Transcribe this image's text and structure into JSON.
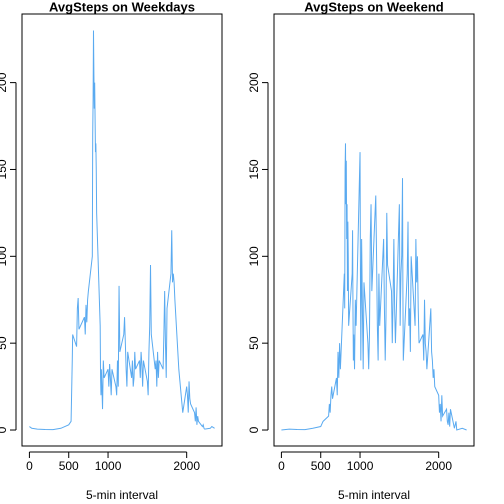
{
  "chart_data": [
    {
      "type": "line",
      "title": "AvgSteps on Weekdays",
      "xlabel": "5-min interval",
      "color": "#5aaaf0",
      "x": [
        0,
        30,
        100,
        200,
        300,
        400,
        500,
        530,
        545,
        550,
        600,
        610,
        620,
        630,
        700,
        710,
        720,
        730,
        740,
        750,
        800,
        805,
        810,
        815,
        820,
        825,
        830,
        835,
        840,
        845,
        850,
        855,
        900,
        905,
        910,
        915,
        920,
        930,
        940,
        950,
        1000,
        1010,
        1020,
        1030,
        1040,
        1050,
        1100,
        1110,
        1120,
        1130,
        1140,
        1150,
        1200,
        1210,
        1220,
        1230,
        1240,
        1250,
        1300,
        1310,
        1320,
        1330,
        1340,
        1350,
        1400,
        1410,
        1420,
        1430,
        1440,
        1450,
        1500,
        1510,
        1520,
        1530,
        1540,
        1550,
        1600,
        1610,
        1620,
        1630,
        1640,
        1650,
        1700,
        1710,
        1720,
        1730,
        1740,
        1750,
        1800,
        1810,
        1820,
        1830,
        1840,
        1850,
        1900,
        1910,
        1920,
        1930,
        1940,
        1950,
        2000,
        2010,
        2020,
        2030,
        2040,
        2050,
        2100,
        2110,
        2120,
        2130,
        2140,
        2150,
        2200,
        2210,
        2220,
        2230,
        2300,
        2320,
        2355
      ],
      "values": [
        2,
        1,
        0.5,
        0.3,
        0.2,
        1,
        3,
        5,
        40,
        55,
        48,
        70,
        76,
        58,
        65,
        55,
        72,
        62,
        75,
        80,
        100,
        170,
        190,
        230,
        205,
        185,
        200,
        180,
        160,
        165,
        150,
        125,
        60,
        30,
        20,
        35,
        28,
        12,
        40,
        30,
        35,
        25,
        38,
        30,
        20,
        35,
        25,
        20,
        40,
        25,
        83,
        45,
        55,
        65,
        50,
        35,
        25,
        45,
        30,
        40,
        25,
        30,
        45,
        35,
        40,
        30,
        45,
        38,
        25,
        40,
        28,
        20,
        45,
        60,
        95,
        55,
        35,
        40,
        25,
        45,
        30,
        40,
        35,
        55,
        80,
        50,
        30,
        70,
        90,
        115,
        85,
        90,
        85,
        75,
        35,
        30,
        25,
        20,
        15,
        10,
        25,
        20,
        10,
        28,
        18,
        15,
        10,
        5,
        13,
        3,
        8,
        5,
        2,
        3,
        1,
        0.5,
        1,
        2,
        1
      ],
      "xlim": [
        -94.2,
        2449.2
      ],
      "ylim": [
        -9.2,
        239.5
      ],
      "xticks": [
        0,
        500,
        1000,
        2000
      ],
      "yticks": [
        0,
        50,
        100,
        150,
        200
      ]
    },
    {
      "type": "line",
      "title": "AvgSteps on Weekend",
      "xlabel": "5-min interval",
      "color": "#5aaaf0",
      "x": [
        0,
        100,
        200,
        300,
        400,
        500,
        530,
        600,
        610,
        620,
        630,
        640,
        650,
        700,
        710,
        720,
        730,
        740,
        750,
        800,
        805,
        810,
        815,
        820,
        825,
        830,
        835,
        840,
        845,
        850,
        855,
        900,
        905,
        910,
        915,
        920,
        930,
        940,
        950,
        1000,
        1005,
        1010,
        1020,
        1030,
        1040,
        1050,
        1100,
        1110,
        1120,
        1130,
        1140,
        1150,
        1200,
        1210,
        1220,
        1230,
        1240,
        1250,
        1300,
        1310,
        1320,
        1330,
        1340,
        1350,
        1400,
        1410,
        1420,
        1430,
        1440,
        1450,
        1500,
        1510,
        1520,
        1530,
        1540,
        1545,
        1550,
        1600,
        1610,
        1620,
        1630,
        1640,
        1650,
        1700,
        1710,
        1720,
        1730,
        1740,
        1750,
        1800,
        1810,
        1820,
        1830,
        1840,
        1850,
        1900,
        1910,
        1920,
        1930,
        1940,
        1950,
        2000,
        2010,
        2020,
        2030,
        2040,
        2050,
        2100,
        2110,
        2120,
        2130,
        2140,
        2150,
        2200,
        2220,
        2230,
        2300,
        2355
      ],
      "values": [
        0,
        0.5,
        0.3,
        0.2,
        1,
        2,
        5,
        8,
        15,
        10,
        20,
        25,
        18,
        30,
        20,
        45,
        30,
        50,
        35,
        90,
        70,
        150,
        165,
        130,
        155,
        110,
        130,
        80,
        120,
        100,
        60,
        90,
        115,
        70,
        40,
        55,
        35,
        75,
        60,
        160,
        90,
        40,
        110,
        70,
        35,
        85,
        50,
        35,
        55,
        110,
        130,
        80,
        135,
        100,
        60,
        40,
        90,
        60,
        110,
        70,
        40,
        65,
        125,
        95,
        80,
        50,
        75,
        110,
        70,
        50,
        130,
        60,
        90,
        100,
        145,
        80,
        40,
        90,
        120,
        60,
        70,
        45,
        100,
        60,
        110,
        85,
        100,
        70,
        50,
        55,
        40,
        75,
        50,
        45,
        35,
        70,
        45,
        40,
        30,
        35,
        25,
        20,
        10,
        15,
        5,
        20,
        8,
        12,
        5,
        3,
        10,
        2,
        12,
        1,
        5,
        0,
        1,
        0
      ],
      "xlim": [
        -94.2,
        2449.2
      ],
      "ylim": [
        -9.2,
        239.5
      ],
      "xticks": [
        0,
        500,
        1000,
        2000
      ],
      "yticks": [
        0,
        50,
        100,
        150,
        200
      ]
    }
  ]
}
